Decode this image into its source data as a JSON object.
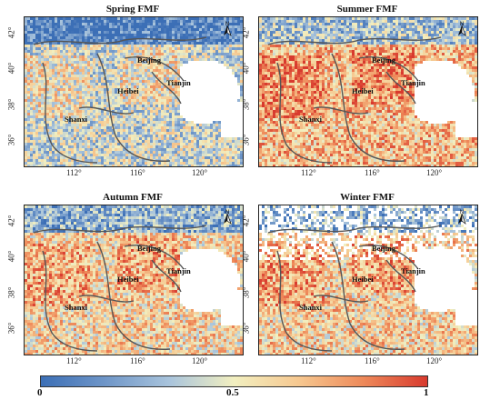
{
  "panels": [
    {
      "title": "Spring FMF",
      "fmf_level": 0.42
    },
    {
      "title": "Summer FMF",
      "fmf_level": 0.68
    },
    {
      "title": "Autumn FMF",
      "fmf_level": 0.6
    },
    {
      "title": "Winter FMF",
      "fmf_level": 0.62
    }
  ],
  "cities": {
    "beijing": "Beijing",
    "tianjin": "Tianjin",
    "hebei": "Heibei",
    "shanxi": "Shanxi"
  },
  "north_label": "N",
  "lat_ticks": [
    "42°",
    "40°",
    "38°",
    "36°"
  ],
  "lon_ticks": [
    "112°",
    "116°",
    "120°"
  ],
  "colorbar": {
    "min": "0",
    "mid": "0.5",
    "max": "1",
    "colors": [
      "#3c6fb6",
      "#6f96c8",
      "#a9c4dc",
      "#f2efc0",
      "#f6c890",
      "#ee8a5a",
      "#d83a2e"
    ]
  }
}
